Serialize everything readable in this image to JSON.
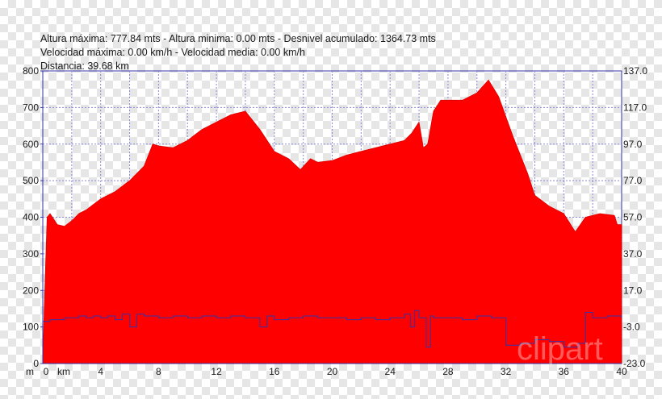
{
  "header": {
    "line1": "Altura máxima: 777.84 mts - Altura minima: 0.00 mts - Desnivel acumulado: 1364.73 mts",
    "line2": "Velocidad máxima: 0.00 km/h - Velocidad media: 0.00 km/h",
    "line3": "Distancia: 39.68 km"
  },
  "watermark": "clipart",
  "chart_data": {
    "type": "area",
    "xlabel": "km",
    "x_tick_labels": [
      "0",
      "4",
      "8",
      "12",
      "16",
      "20",
      "24",
      "28",
      "32",
      "36",
      "40"
    ],
    "xlim": [
      0,
      40
    ],
    "ylabel": "m",
    "ylim": [
      0,
      800
    ],
    "y_tick_labels": [
      "0",
      "100",
      "200",
      "300",
      "400",
      "500",
      "600",
      "700",
      "800"
    ],
    "y2_tick_labels": [
      "137.0",
      "117.0",
      "97.0",
      "77.0",
      "57.0",
      "37.0",
      "17.0",
      "-3.0",
      "-23.0"
    ],
    "y2lim": [
      -23,
      137
    ],
    "grid": true,
    "colors": {
      "elevation_fill": "#ff0000",
      "speed_line": "#3333aa",
      "grid": "#8888dd",
      "axis": "#3333aa"
    },
    "series": [
      {
        "values": [
          [
            0,
            0
          ],
          [
            0.1,
            150
          ],
          [
            0.3,
            400
          ],
          [
            0.5,
            410
          ],
          [
            1.0,
            380
          ],
          [
            1.5,
            375
          ],
          [
            2,
            390
          ],
          [
            2.5,
            410
          ],
          [
            3,
            420
          ],
          [
            4,
            450
          ],
          [
            5,
            470
          ],
          [
            6,
            500
          ],
          [
            7,
            540
          ],
          [
            7.6,
            600
          ],
          [
            8,
            595
          ],
          [
            9,
            590
          ],
          [
            10,
            610
          ],
          [
            11,
            640
          ],
          [
            12,
            660
          ],
          [
            13,
            680
          ],
          [
            14,
            690
          ],
          [
            15,
            640
          ],
          [
            16,
            580
          ],
          [
            17,
            560
          ],
          [
            17.8,
            530
          ],
          [
            18.5,
            560
          ],
          [
            19,
            550
          ],
          [
            20,
            555
          ],
          [
            21,
            570
          ],
          [
            22,
            580
          ],
          [
            23,
            590
          ],
          [
            24,
            600
          ],
          [
            25,
            610
          ],
          [
            25.5,
            630
          ],
          [
            26,
            660
          ],
          [
            26.3,
            590
          ],
          [
            26.6,
            600
          ],
          [
            27,
            690
          ],
          [
            27.5,
            720
          ],
          [
            28,
            720
          ],
          [
            29,
            720
          ],
          [
            30,
            740
          ],
          [
            30.8,
            775
          ],
          [
            31.5,
            730
          ],
          [
            32.5,
            620
          ],
          [
            33.5,
            520
          ],
          [
            34,
            460
          ],
          [
            35,
            430
          ],
          [
            36,
            410
          ],
          [
            36.8,
            360
          ],
          [
            37.5,
            400
          ],
          [
            38.5,
            410
          ],
          [
            39.5,
            405
          ],
          [
            39.7,
            380
          ],
          [
            40,
            380
          ],
          [
            40,
            0
          ]
        ]
      },
      {
        "values": [
          [
            0,
            0
          ],
          [
            0.5,
            1
          ],
          [
            1,
            1
          ],
          [
            1.5,
            2
          ],
          [
            2,
            2
          ],
          [
            2.5,
            3
          ],
          [
            3,
            2
          ],
          [
            3.5,
            3
          ],
          [
            4,
            2
          ],
          [
            4.5,
            3
          ],
          [
            5,
            1
          ],
          [
            5.5,
            4
          ],
          [
            6,
            -3
          ],
          [
            6.5,
            4
          ],
          [
            7,
            3
          ],
          [
            8,
            2
          ],
          [
            9,
            3
          ],
          [
            10,
            2
          ],
          [
            11,
            3
          ],
          [
            12,
            2
          ],
          [
            13,
            3
          ],
          [
            14,
            2
          ],
          [
            15,
            -3
          ],
          [
            15.5,
            3
          ],
          [
            16,
            1
          ],
          [
            17,
            2
          ],
          [
            18,
            3
          ],
          [
            19,
            2
          ],
          [
            20,
            2
          ],
          [
            21,
            1
          ],
          [
            22,
            2
          ],
          [
            23,
            1
          ],
          [
            24,
            2
          ],
          [
            25,
            4
          ],
          [
            25.4,
            -3
          ],
          [
            25.7,
            6
          ],
          [
            26,
            2
          ],
          [
            26.5,
            -14
          ],
          [
            26.8,
            3
          ],
          [
            27,
            2
          ],
          [
            28,
            2
          ],
          [
            29,
            1
          ],
          [
            30,
            3
          ],
          [
            31,
            2
          ],
          [
            32,
            -13
          ],
          [
            33,
            -12
          ],
          [
            34,
            -10
          ],
          [
            35,
            -11
          ],
          [
            36,
            -14
          ],
          [
            37,
            -12
          ],
          [
            37.5,
            5
          ],
          [
            38,
            2
          ],
          [
            39,
            3
          ],
          [
            40,
            2
          ]
        ]
      }
    ]
  }
}
